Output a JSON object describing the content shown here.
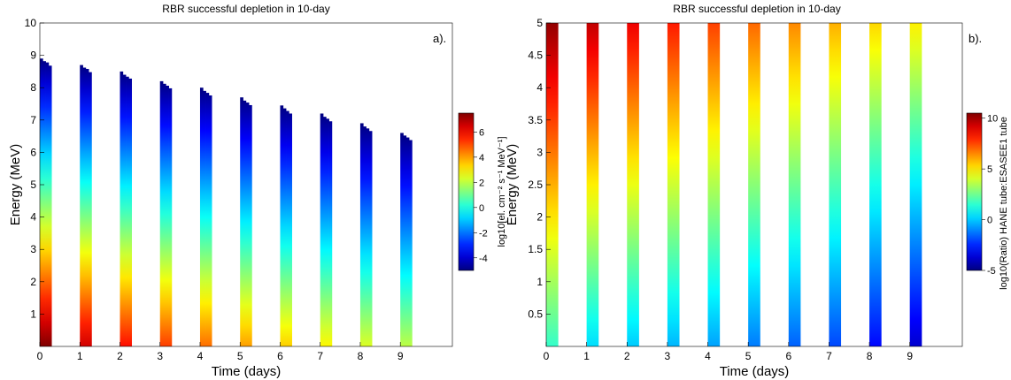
{
  "chart_data": [
    {
      "type": "heatmap",
      "panel_label": "a).",
      "title": "RBR successful depletion in 10-day",
      "xlabel": "Time (days)",
      "ylabel": "Energy (MeV)",
      "xlim": [
        0,
        10.3
      ],
      "ylim": [
        0,
        10
      ],
      "xticks": [
        "0",
        "1",
        "2",
        "3",
        "4",
        "5",
        "6",
        "7",
        "8",
        "9"
      ],
      "xtick_values": [
        0,
        1,
        2,
        3,
        4,
        5,
        6,
        7,
        8,
        9
      ],
      "yticks": [
        "1",
        "2",
        "3",
        "4",
        "5",
        "6",
        "7",
        "8",
        "9",
        "10"
      ],
      "ytick_values": [
        1,
        2,
        3,
        4,
        5,
        6,
        7,
        8,
        9,
        10
      ],
      "grid": false,
      "colorbar": {
        "label": "log10[el. cm⁻² s⁻¹ MeV⁻¹]",
        "range": [
          -5,
          7.5
        ],
        "ticks": [
          "-4",
          "-2",
          "0",
          "2",
          "4",
          "6"
        ],
        "tick_values": [
          -4,
          -2,
          0,
          2,
          4,
          6
        ]
      },
      "columns": [
        {
          "day": 0,
          "max_energy": [
            8.9,
            8.82,
            8.78,
            8.68
          ],
          "bottom_value": 7.5,
          "top_value": -5
        },
        {
          "day": 1,
          "max_energy": [
            8.7,
            8.62,
            8.58,
            8.48
          ],
          "bottom_value": 6.5,
          "top_value": -5
        },
        {
          "day": 2,
          "max_energy": [
            8.5,
            8.4,
            8.34,
            8.28
          ],
          "bottom_value": 5.8,
          "top_value": -5
        },
        {
          "day": 3,
          "max_energy": [
            8.2,
            8.12,
            8.06,
            7.98
          ],
          "bottom_value": 5.2,
          "top_value": -5
        },
        {
          "day": 4,
          "max_energy": [
            8.0,
            7.9,
            7.84,
            7.76
          ],
          "bottom_value": 4.6,
          "top_value": -5
        },
        {
          "day": 5,
          "max_energy": [
            7.7,
            7.6,
            7.54,
            7.46
          ],
          "bottom_value": 4.0,
          "top_value": -5
        },
        {
          "day": 6,
          "max_energy": [
            7.45,
            7.36,
            7.28,
            7.2
          ],
          "bottom_value": 3.4,
          "top_value": -5
        },
        {
          "day": 7,
          "max_energy": [
            7.2,
            7.1,
            7.04,
            6.96
          ],
          "bottom_value": 2.9,
          "top_value": -5
        },
        {
          "day": 8,
          "max_energy": [
            6.9,
            6.8,
            6.74,
            6.66
          ],
          "bottom_value": 2.4,
          "top_value": -5
        },
        {
          "day": 9,
          "max_energy": [
            6.6,
            6.52,
            6.46,
            6.38
          ],
          "bottom_value": 2.0,
          "top_value": -5
        }
      ],
      "column_width_days": 0.29
    },
    {
      "type": "heatmap",
      "panel_label": "b).",
      "title": "RBR successful depletion in 10-day",
      "xlabel": "Time (days)",
      "ylabel": "Energy (MeV)",
      "xlim": [
        0,
        10.3
      ],
      "ylim": [
        0,
        5
      ],
      "xticks": [
        "0",
        "1",
        "2",
        "3",
        "4",
        "5",
        "6",
        "7",
        "8",
        "9"
      ],
      "xtick_values": [
        0,
        1,
        2,
        3,
        4,
        5,
        6,
        7,
        8,
        9
      ],
      "yticks": [
        "0.5",
        "1",
        "1.5",
        "2",
        "2.5",
        "3",
        "3.5",
        "4",
        "4.5",
        "5"
      ],
      "ytick_values": [
        0.5,
        1,
        1.5,
        2,
        2.5,
        3,
        3.5,
        4,
        4.5,
        5
      ],
      "grid": false,
      "colorbar": {
        "label": "log10(Ratio) HANE tube:ESASEE1 tube",
        "range": [
          -5,
          10.5
        ],
        "ticks": [
          "-5",
          "0",
          "5",
          "10"
        ],
        "tick_values": [
          -5,
          0,
          5,
          10
        ]
      },
      "columns": [
        {
          "day": 0,
          "bottom_value": 1.6,
          "top_value": 10.2
        },
        {
          "day": 1,
          "bottom_value": 0.3,
          "top_value": 9.5
        },
        {
          "day": 2,
          "bottom_value": 0.0,
          "top_value": 8.8
        },
        {
          "day": 3,
          "bottom_value": -0.3,
          "top_value": 8.2
        },
        {
          "day": 4,
          "bottom_value": -0.6,
          "top_value": 7.6
        },
        {
          "day": 5,
          "bottom_value": -1.2,
          "top_value": 7.0
        },
        {
          "day": 6,
          "bottom_value": -1.6,
          "top_value": 6.5
        },
        {
          "day": 7,
          "bottom_value": -2.0,
          "top_value": 5.9
        },
        {
          "day": 8,
          "bottom_value": -3.0,
          "top_value": 5.3
        },
        {
          "day": 9,
          "bottom_value": -3.8,
          "top_value": 4.9
        }
      ],
      "column_width_days": 0.29
    }
  ]
}
